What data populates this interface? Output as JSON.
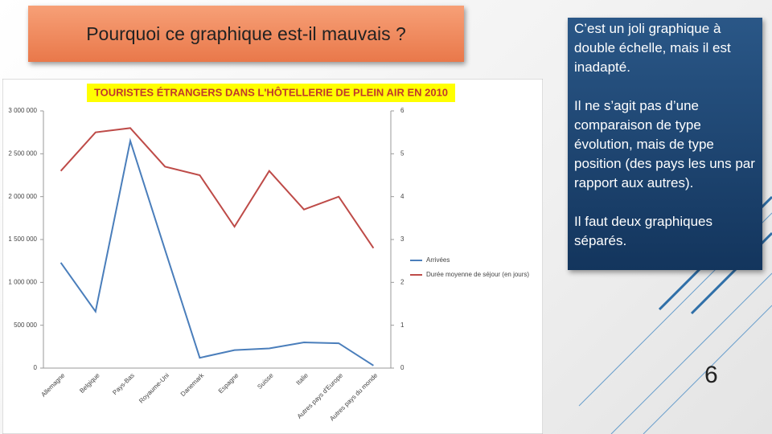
{
  "slide": {
    "title": "Pourquoi ce graphique est-il mauvais ?",
    "body": [
      "C’est un joli graphique à double échelle, mais il est inadapté.",
      "Il ne s’agit pas d’une comparaison de type évolution, mais de type position (des pays les uns par rapport aux autres).",
      "Il faut deux graphiques séparés."
    ],
    "page_number": "6"
  },
  "chart_data": {
    "type": "line",
    "title": "TOURISTES ÉTRANGERS DANS L'HÔTELLERIE DE PLEIN AIR EN 2010",
    "categories": [
      "Allemagne",
      "Belgique",
      "Pays-Bas",
      "Royaume-Uni",
      "Danemark",
      "Espagne",
      "Suisse",
      "Italie",
      "Autres pays d'Europe",
      "Autres pays du monde"
    ],
    "series": [
      {
        "name": "Arrivées",
        "color": "#4a7ebb",
        "values": [
          1230000,
          660000,
          2650000,
          1380000,
          120000,
          210000,
          230000,
          300000,
          290000,
          30000
        ]
      },
      {
        "name": "Durée moyenne de séjour (en jours)",
        "color": "#be4b48",
        "axis": "y2",
        "values": [
          4.6,
          5.5,
          5.6,
          4.7,
          4.5,
          3.3,
          4.6,
          3.7,
          4.0,
          2.8
        ]
      }
    ],
    "ylim": [
      0,
      3000000
    ],
    "yticks": [
      0,
      {
        "value": 500000,
        "label": "500 000"
      },
      {
        "value": 1000000,
        "label": "1 000 000"
      },
      {
        "value": 1500000,
        "label": "1 500 000"
      },
      {
        "value": 2000000,
        "label": "2 000 000"
      },
      {
        "value": 2500000,
        "label": "2 500 000"
      },
      {
        "value": 3000000,
        "label": "3 000 000"
      }
    ],
    "y2lim": [
      0,
      6
    ],
    "y2ticks": [
      0,
      1,
      2,
      3,
      4,
      5,
      6
    ],
    "grid": false,
    "legend": "right"
  }
}
